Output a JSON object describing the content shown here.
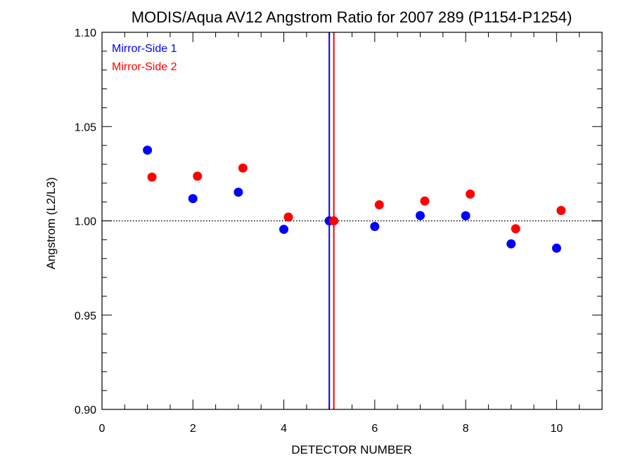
{
  "chart_data": {
    "type": "scatter",
    "title": "MODIS/Aqua AV12 Angstrom Ratio for 2007 289 (P1154-P1254)",
    "xlabel": "DETECTOR NUMBER",
    "ylabel": "Angstrom (L2/L3)",
    "xlim": [
      0,
      11
    ],
    "ylim": [
      0.9,
      1.1
    ],
    "x_ticks": [
      0,
      2,
      4,
      6,
      8,
      10
    ],
    "x_tick_labels": [
      "0",
      "2",
      "4",
      "6",
      "8",
      "10"
    ],
    "y_ticks": [
      0.9,
      0.95,
      1.0,
      1.05,
      1.1
    ],
    "y_tick_labels": [
      "0.90",
      "0.95",
      "1.00",
      "1.05",
      "1.10"
    ],
    "x_minor_step": 0.5,
    "y_minor_step": 0.01,
    "reference_line": {
      "y": 1.0,
      "style": "dotted",
      "color": "#000000"
    },
    "vertical_lines": [
      {
        "x": 5.0,
        "color": "#0000ff"
      },
      {
        "x": 5.1,
        "color": "#ff0000"
      }
    ],
    "legend_position": "top-left",
    "series": [
      {
        "name": "Mirror-Side 1",
        "color": "#0000ff",
        "x": [
          1,
          2,
          3,
          4,
          5,
          6,
          7,
          8,
          9,
          10
        ],
        "y": [
          1.0375,
          1.0118,
          1.0152,
          0.9955,
          1.0,
          0.997,
          1.0028,
          1.0027,
          0.9878,
          0.9855
        ]
      },
      {
        "name": "Mirror-Side 2",
        "color": "#ff0000",
        "x": [
          1.1,
          2.1,
          3.1,
          4.1,
          5.1,
          6.1,
          7.1,
          8.1,
          9.1,
          10.1
        ],
        "y": [
          1.0232,
          1.0237,
          1.028,
          1.002,
          1.0,
          1.0085,
          1.0105,
          1.0142,
          0.9958,
          1.0055
        ]
      }
    ]
  }
}
